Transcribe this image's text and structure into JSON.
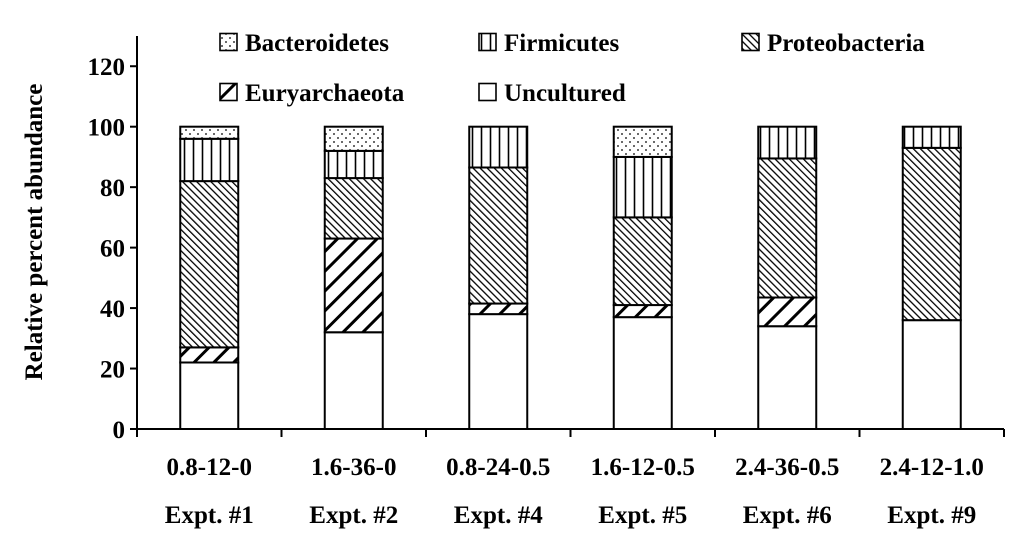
{
  "chart_data": {
    "type": "bar",
    "stacked": true,
    "title": "",
    "xlabel": "",
    "ylabel": "Relative percent abundance",
    "ylim": [
      0,
      130
    ],
    "yticks": [
      "0",
      "20",
      "40",
      "60",
      "80",
      "100",
      "120"
    ],
    "ytick_values": [
      0,
      20,
      40,
      60,
      80,
      100,
      120
    ],
    "grid": false,
    "legend_position": "top",
    "categories": [
      {
        "line1": "0.8-12-0",
        "line2": "Expt. #1"
      },
      {
        "line1": "1.6-36-0",
        "line2": "Expt. #2"
      },
      {
        "line1": "0.8-24-0.5",
        "line2": "Expt. #4"
      },
      {
        "line1": "1.6-12-0.5",
        "line2": "Expt. #5"
      },
      {
        "line1": "2.4-36-0.5",
        "line2": "Expt. #6"
      },
      {
        "line1": "2.4-12-1.0",
        "line2": "Expt. #9"
      }
    ],
    "series": [
      {
        "name": "Uncultured",
        "pattern": "white",
        "values": [
          22,
          32,
          38,
          37,
          34,
          36
        ]
      },
      {
        "name": "Euryarchaeota",
        "pattern": "wide-diagonal",
        "values": [
          5,
          31,
          3.5,
          4,
          9.5,
          0
        ]
      },
      {
        "name": "Proteobacteria",
        "pattern": "dense-diagonal",
        "values": [
          55,
          20,
          45,
          29,
          46,
          57
        ]
      },
      {
        "name": "Firmicutes",
        "pattern": "vertical-lines",
        "values": [
          14,
          9,
          13.5,
          20,
          10.5,
          7
        ]
      },
      {
        "name": "Bacteroidetes",
        "pattern": "dots",
        "values": [
          4,
          8,
          0,
          10,
          0,
          0
        ]
      }
    ],
    "legend": [
      {
        "series": "Bacteroidetes",
        "row": 0,
        "col": 0
      },
      {
        "series": "Firmicutes",
        "row": 0,
        "col": 1
      },
      {
        "series": "Proteobacteria",
        "row": 0,
        "col": 2
      },
      {
        "series": "Euryarchaeota",
        "row": 1,
        "col": 0
      },
      {
        "series": "Uncultured",
        "row": 1,
        "col": 1
      }
    ]
  }
}
